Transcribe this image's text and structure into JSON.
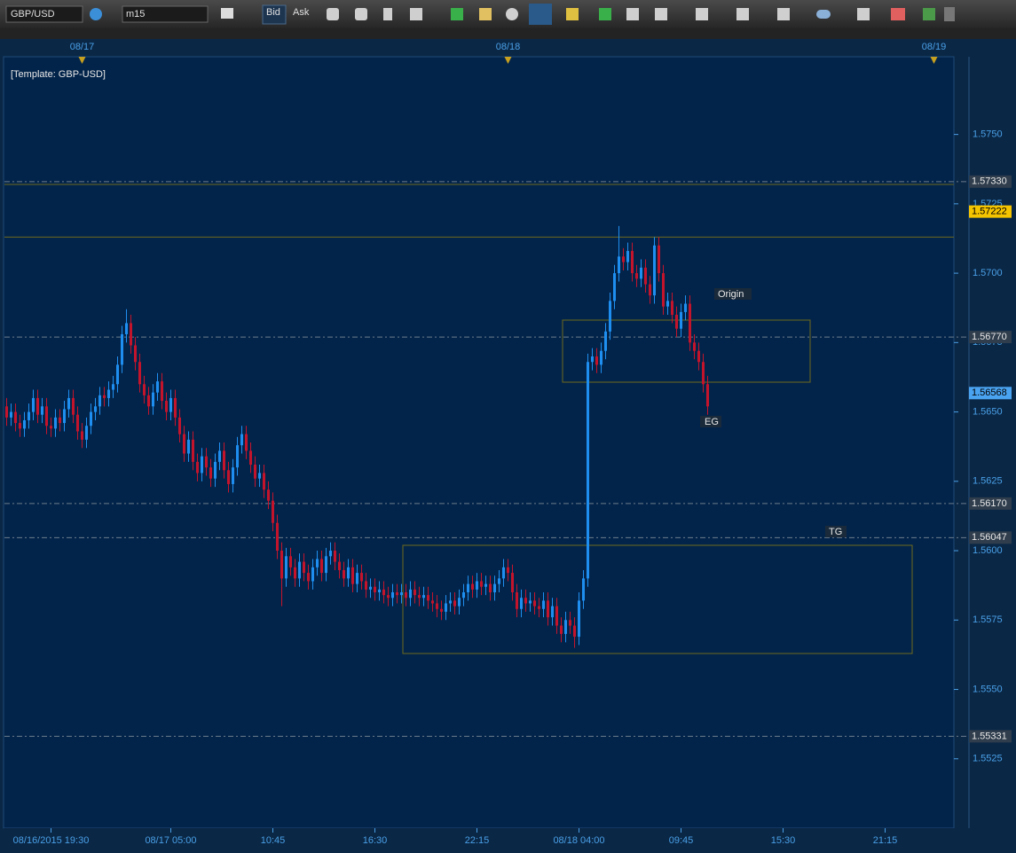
{
  "toolbar": {
    "symbol": "GBP/USD",
    "timeframe": "m15",
    "bid": "Bid",
    "ask": "Ask"
  },
  "chart_data": {
    "type": "candlestick",
    "title": "[Template: GBP-USD]",
    "categories": [
      null,
      null,
      null,
      null,
      null,
      null,
      null,
      null,
      null,
      null,
      "08/16/2015 19:30",
      null,
      null,
      null,
      null,
      null,
      null,
      null,
      null,
      null,
      null,
      null,
      null,
      null,
      null,
      null,
      null,
      null,
      null,
      null,
      null,
      null,
      null,
      null,
      null,
      null,
      null,
      "08/17 05:00",
      null,
      null,
      null,
      null,
      null,
      null,
      null,
      null,
      null,
      null,
      null,
      null,
      null,
      null,
      null,
      null,
      null,
      null,
      null,
      null,
      null,
      null,
      "10:45",
      null,
      null,
      null,
      null,
      null,
      null,
      null,
      null,
      null,
      null,
      null,
      null,
      null,
      null,
      null,
      null,
      null,
      null,
      null,
      null,
      null,
      null,
      "16:30",
      null,
      null,
      null,
      null,
      null,
      null,
      null,
      null,
      null,
      null,
      null,
      null,
      null,
      null,
      null,
      null,
      null,
      null,
      null,
      null,
      null,
      null,
      "22:15",
      null,
      null,
      null,
      null,
      null,
      null,
      null,
      null,
      null,
      null,
      null,
      null,
      null,
      null,
      null,
      null,
      null,
      null,
      null,
      null,
      null,
      null,
      "08/18 04:00",
      null,
      null,
      null,
      null,
      null,
      null,
      null,
      null,
      null,
      null,
      null,
      null,
      null,
      null,
      null,
      null,
      null,
      null,
      null,
      null,
      null,
      null,
      "09:45",
      null,
      null,
      null,
      null,
      null,
      null,
      null,
      null,
      null,
      null,
      null,
      null,
      null,
      null,
      null,
      null,
      null,
      null,
      null,
      null,
      null,
      null,
      "15:30",
      null,
      null,
      null,
      null,
      null,
      null,
      null,
      null,
      null,
      null,
      null,
      null,
      null,
      null,
      null,
      null,
      null,
      null,
      null,
      null,
      null,
      null,
      "21:15",
      null,
      null,
      null,
      null,
      null,
      null,
      null,
      null,
      null,
      null,
      null,
      null,
      null,
      null,
      null
    ],
    "dates": [
      null,
      null,
      null,
      null,
      null,
      null,
      null,
      null,
      null,
      null,
      null,
      null,
      null,
      null,
      null,
      null,
      null,
      "08/17",
      null,
      null,
      null,
      null,
      null,
      null,
      null,
      null,
      null,
      null,
      null,
      null,
      null,
      null,
      null,
      null,
      null,
      null,
      null,
      null,
      null,
      null,
      null,
      null,
      null,
      null,
      null,
      null,
      null,
      null,
      null,
      null,
      null,
      null,
      null,
      null,
      null,
      null,
      null,
      null,
      null,
      null,
      null,
      null,
      null,
      null,
      null,
      null,
      null,
      null,
      null,
      null,
      null,
      null,
      null,
      null,
      null,
      null,
      null,
      null,
      null,
      null,
      null,
      null,
      null,
      null,
      null,
      null,
      null,
      null,
      null,
      null,
      null,
      null,
      null,
      null,
      null,
      null,
      null,
      null,
      null,
      null,
      null,
      null,
      null,
      null,
      null,
      null,
      null,
      null,
      null,
      null,
      null,
      null,
      null,
      "08/18",
      null,
      null,
      null,
      null,
      null,
      null,
      null,
      null,
      null,
      null,
      null,
      null,
      null,
      null,
      null,
      null,
      null,
      null,
      null,
      null,
      null,
      null,
      null,
      null,
      null,
      null,
      null,
      null,
      null,
      null,
      null,
      null,
      null,
      null,
      null,
      null,
      null,
      null,
      null,
      null,
      null,
      null,
      null,
      null,
      null,
      null,
      null,
      null,
      null,
      null,
      null,
      null,
      null,
      null,
      null,
      null,
      null,
      null,
      null,
      null,
      null,
      null,
      null,
      null,
      null,
      null,
      null,
      null,
      null,
      null,
      null,
      null,
      null,
      null,
      null,
      null,
      null,
      null,
      null,
      null,
      null,
      null,
      null,
      null,
      null,
      null,
      null,
      null,
      null,
      null,
      null,
      null,
      null,
      null,
      null,
      "08/19",
      null,
      null,
      null,
      null
    ],
    "open": [
      1.5652,
      1.5648,
      1.565,
      1.5646,
      1.5644,
      1.5647,
      1.565,
      1.5655,
      1.5649,
      1.5652,
      1.5645,
      1.5644,
      1.5648,
      1.5646,
      1.5651,
      1.5655,
      1.5649,
      1.5643,
      1.564,
      1.5645,
      1.565,
      1.5652,
      1.5656,
      1.5655,
      1.5658,
      1.566,
      1.5667,
      1.5678,
      1.5682,
      1.5674,
      1.5668,
      1.566,
      1.5656,
      1.5652,
      1.5657,
      1.5661,
      1.5654,
      1.565,
      1.5655,
      1.5648,
      1.5642,
      1.5635,
      1.564,
      1.5632,
      1.5628,
      1.5634,
      1.563,
      1.5626,
      1.5632,
      1.5636,
      1.5629,
      1.5624,
      1.563,
      1.5638,
      1.5642,
      1.5636,
      1.5631,
      1.5626,
      1.5628,
      1.5622,
      1.5618,
      1.561,
      1.56,
      1.559,
      1.5598,
      1.5594,
      1.559,
      1.5596,
      1.5592,
      1.5589,
      1.5594,
      1.5597,
      1.5592,
      1.5598,
      1.56,
      1.5596,
      1.5593,
      1.559,
      1.5594,
      1.5588,
      1.5592,
      1.5589,
      1.5586,
      1.5587,
      1.5585,
      1.5586,
      1.5584,
      1.5583,
      1.5585,
      1.5584,
      1.5585,
      1.5583,
      1.5586,
      1.5584,
      1.5583,
      1.5584,
      1.5582,
      1.5581,
      1.5579,
      1.5578,
      1.5581,
      1.5582,
      1.558,
      1.5583,
      1.5585,
      1.5588,
      1.5586,
      1.5589,
      1.5587,
      1.5588,
      1.5585,
      1.5588,
      1.559,
      1.5594,
      1.5592,
      1.5585,
      1.5579,
      1.5583,
      1.5581,
      1.5582,
      1.558,
      1.5579,
      1.5582,
      1.5576,
      1.558,
      1.5573,
      1.557,
      1.5575,
      1.5573,
      1.5569,
      1.5582,
      1.559,
      1.5668,
      1.567,
      1.5667,
      1.5672,
      1.5679,
      1.569,
      1.57,
      1.5706,
      1.5704,
      1.5708,
      1.57,
      1.5698,
      1.5702,
      1.5696,
      1.5692,
      1.571,
      1.57,
      1.5688,
      1.569,
      1.5685,
      1.568,
      1.5686,
      1.5689,
      1.5675,
      1.5672,
      1.5668,
      1.566,
      null,
      null,
      null,
      null,
      null,
      null,
      null,
      null,
      null,
      null,
      null,
      null,
      null,
      null,
      null,
      null,
      null,
      null,
      null,
      null,
      null,
      null,
      null,
      null,
      null,
      null,
      null,
      null,
      null,
      null,
      null,
      null,
      null,
      null,
      null,
      null,
      null,
      null,
      null,
      null,
      null,
      null,
      null,
      null,
      null,
      null,
      null,
      null,
      null,
      null,
      null,
      null,
      null,
      null,
      null
    ],
    "high": [
      1.5655,
      1.5653,
      1.5653,
      1.5649,
      1.565,
      1.5653,
      1.5658,
      1.5658,
      1.5655,
      1.5655,
      1.5648,
      1.5651,
      1.5651,
      1.5654,
      1.5658,
      1.5658,
      1.5652,
      1.5646,
      1.5648,
      1.5653,
      1.5655,
      1.5659,
      1.5659,
      1.5661,
      1.5663,
      1.567,
      1.5681,
      1.5687,
      1.5685,
      1.5677,
      1.5671,
      1.5663,
      1.5659,
      1.566,
      1.5664,
      1.5664,
      1.5657,
      1.5658,
      1.5658,
      1.5651,
      1.5645,
      1.5643,
      1.5643,
      1.5635,
      1.5637,
      1.5637,
      1.5633,
      1.5635,
      1.5639,
      1.5639,
      1.5632,
      1.5633,
      1.5641,
      1.5645,
      1.5645,
      1.5639,
      1.5634,
      1.5631,
      1.5631,
      1.5625,
      1.5621,
      1.5613,
      1.5603,
      1.5601,
      1.5601,
      1.5597,
      1.5599,
      1.5599,
      1.5595,
      1.5597,
      1.56,
      1.56,
      1.5601,
      1.5603,
      1.5603,
      1.5599,
      1.5596,
      1.5597,
      1.5597,
      1.5595,
      1.5595,
      1.5592,
      1.559,
      1.559,
      1.5589,
      1.5589,
      1.5587,
      1.5588,
      1.5588,
      1.5588,
      1.5588,
      1.5589,
      1.5589,
      1.5587,
      1.5587,
      1.5587,
      1.5585,
      1.5584,
      1.5582,
      1.5584,
      1.5585,
      1.5585,
      1.5586,
      1.5588,
      1.5591,
      1.5591,
      1.5592,
      1.5592,
      1.5591,
      1.5591,
      1.5591,
      1.5593,
      1.5597,
      1.5597,
      1.5595,
      1.5588,
      1.5586,
      1.5586,
      1.5585,
      1.5585,
      1.5583,
      1.5585,
      1.5585,
      1.5583,
      1.5583,
      1.5576,
      1.5578,
      1.5578,
      1.5576,
      1.5585,
      1.5593,
      1.5671,
      1.5673,
      1.5673,
      1.5675,
      1.5682,
      1.5693,
      1.5703,
      1.5717,
      1.5709,
      1.5711,
      1.5711,
      1.5703,
      1.5705,
      1.5705,
      1.5699,
      1.5713,
      1.5713,
      1.5703,
      1.5693,
      1.5693,
      1.5688,
      1.5689,
      1.5692,
      1.5692,
      1.5678,
      1.5675,
      1.5671,
      1.5663,
      null,
      null,
      null,
      null,
      null,
      null,
      null,
      null,
      null,
      null,
      null,
      null,
      null,
      null,
      null,
      null,
      null,
      null,
      null,
      null,
      null,
      null,
      null,
      null,
      null,
      null,
      null,
      null,
      null,
      null,
      null,
      null,
      null,
      null,
      null,
      null,
      null,
      null,
      null,
      null,
      null,
      null,
      null,
      null,
      null,
      null,
      null,
      null,
      null,
      null,
      null,
      null,
      null,
      null,
      null
    ],
    "low": [
      1.5645,
      1.5645,
      1.5643,
      1.5641,
      1.5641,
      1.5644,
      1.5647,
      1.5646,
      1.5646,
      1.5642,
      1.5641,
      1.5641,
      1.5643,
      1.5643,
      1.5648,
      1.5646,
      1.564,
      1.5637,
      1.5637,
      1.5642,
      1.5647,
      1.5649,
      1.5652,
      1.5652,
      1.5655,
      1.5657,
      1.5664,
      1.5675,
      1.5671,
      1.5665,
      1.5657,
      1.5653,
      1.5649,
      1.5649,
      1.5654,
      1.5651,
      1.5647,
      1.5647,
      1.5645,
      1.5639,
      1.5632,
      1.5632,
      1.5629,
      1.5625,
      1.5625,
      1.5627,
      1.5623,
      1.5623,
      1.5629,
      1.5626,
      1.5621,
      1.5621,
      1.5627,
      1.5635,
      1.5633,
      1.5628,
      1.5623,
      1.5623,
      1.5619,
      1.5615,
      1.5607,
      1.5597,
      1.558,
      1.5587,
      1.5591,
      1.5587,
      1.5587,
      1.5589,
      1.5586,
      1.5586,
      1.5591,
      1.5589,
      1.5589,
      1.5595,
      1.5593,
      1.559,
      1.5587,
      1.5587,
      1.5585,
      1.5585,
      1.5586,
      1.5583,
      1.5583,
      1.5582,
      1.5582,
      1.5581,
      1.558,
      1.558,
      1.5581,
      1.5581,
      1.558,
      1.558,
      1.5581,
      1.558,
      1.558,
      1.5579,
      1.5578,
      1.5576,
      1.5575,
      1.5575,
      1.5578,
      1.5577,
      1.5577,
      1.558,
      1.5582,
      1.5583,
      1.5583,
      1.5584,
      1.5584,
      1.5582,
      1.5582,
      1.5585,
      1.5587,
      1.5589,
      1.5582,
      1.5576,
      1.5576,
      1.5578,
      1.5578,
      1.5577,
      1.5576,
      1.5576,
      1.5573,
      1.5573,
      1.557,
      1.5567,
      1.5567,
      1.557,
      1.5565,
      1.5566,
      1.5579,
      1.5587,
      1.5665,
      1.5664,
      1.5664,
      1.5669,
      1.5676,
      1.5687,
      1.5697,
      1.5701,
      1.5701,
      1.5697,
      1.5695,
      1.5695,
      1.5693,
      1.5689,
      1.5689,
      1.5697,
      1.5685,
      1.5685,
      1.5682,
      1.5677,
      1.5677,
      1.5683,
      1.5672,
      1.5669,
      1.5665,
      1.5657,
      1.5649,
      null,
      null,
      null,
      null,
      null,
      null,
      null,
      null,
      null,
      null,
      null,
      null,
      null,
      null,
      null,
      null,
      null,
      null,
      null,
      null,
      null,
      null,
      null,
      null,
      null,
      null,
      null,
      null,
      null,
      null,
      null,
      null,
      null,
      null,
      null,
      null,
      null,
      null,
      null,
      null,
      null,
      null,
      null,
      null,
      null,
      null,
      null,
      null,
      null,
      null,
      null,
      null,
      null,
      null,
      null
    ],
    "close": [
      1.5648,
      1.565,
      1.5646,
      1.5644,
      1.5647,
      1.565,
      1.5655,
      1.5649,
      1.5652,
      1.5645,
      1.5644,
      1.5648,
      1.5646,
      1.5651,
      1.5655,
      1.5649,
      1.5643,
      1.564,
      1.5645,
      1.565,
      1.5652,
      1.5656,
      1.5655,
      1.5658,
      1.566,
      1.5667,
      1.5678,
      1.5682,
      1.5674,
      1.5668,
      1.566,
      1.5656,
      1.5652,
      1.5657,
      1.5661,
      1.5654,
      1.565,
      1.5655,
      1.5648,
      1.5642,
      1.5635,
      1.564,
      1.5632,
      1.5628,
      1.5634,
      1.563,
      1.5626,
      1.5632,
      1.5636,
      1.5629,
      1.5624,
      1.563,
      1.5638,
      1.5642,
      1.5636,
      1.5631,
      1.5626,
      1.5628,
      1.5622,
      1.5618,
      1.561,
      1.56,
      1.559,
      1.5598,
      1.5594,
      1.559,
      1.5596,
      1.5592,
      1.5589,
      1.5594,
      1.5597,
      1.5592,
      1.5598,
      1.56,
      1.5596,
      1.5593,
      1.559,
      1.5594,
      1.5588,
      1.5592,
      1.5589,
      1.5586,
      1.5587,
      1.5585,
      1.5586,
      1.5584,
      1.5583,
      1.5585,
      1.5584,
      1.5585,
      1.5583,
      1.5586,
      1.5584,
      1.5583,
      1.5584,
      1.5582,
      1.5581,
      1.5579,
      1.5578,
      1.5581,
      1.5582,
      1.558,
      1.5583,
      1.5585,
      1.5588,
      1.5586,
      1.5589,
      1.5587,
      1.5588,
      1.5585,
      1.5588,
      1.559,
      1.5594,
      1.5592,
      1.5585,
      1.5579,
      1.5583,
      1.5581,
      1.5582,
      1.558,
      1.5579,
      1.5582,
      1.5576,
      1.558,
      1.5573,
      1.557,
      1.5575,
      1.5573,
      1.5569,
      1.5582,
      1.559,
      1.5668,
      1.567,
      1.5667,
      1.5672,
      1.5679,
      1.569,
      1.57,
      1.5706,
      1.5704,
      1.5708,
      1.57,
      1.5698,
      1.5702,
      1.5696,
      1.5692,
      1.571,
      1.57,
      1.5688,
      1.569,
      1.5685,
      1.568,
      1.5686,
      1.5689,
      1.5675,
      1.5672,
      1.5668,
      1.566,
      1.5652,
      null,
      null,
      null,
      null,
      null,
      null,
      null,
      null,
      null,
      null,
      null,
      null,
      null,
      null,
      null,
      null,
      null,
      null,
      null,
      null,
      null,
      null,
      null,
      null,
      null,
      null,
      null,
      null,
      null,
      null,
      null,
      null,
      null,
      null,
      null,
      null,
      null,
      null,
      null,
      null,
      null,
      null,
      null,
      null,
      null,
      null,
      null,
      null,
      null,
      null,
      null,
      null,
      null,
      null,
      null
    ],
    "up_color": "#1e8ff0",
    "down_color": "#c4142c",
    "ylim": [
      1.55,
      1.5778
    ],
    "yticks": [
      {
        "value": 1.575,
        "label": "1.5750"
      },
      1.5725,
      {
        "value": 1.57,
        "label": "1.5700"
      },
      1.5675,
      {
        "value": 1.565,
        "label": "1.5650"
      },
      1.5625,
      {
        "value": 1.56,
        "label": "1.5600"
      },
      1.5575,
      {
        "value": 1.555,
        "label": "1.5550"
      },
      1.5525
    ],
    "levels": [
      {
        "value": 1.5733,
        "label": "1.57330",
        "line": true,
        "bg": "#2f3d4c",
        "fg": "#e8e8e8"
      },
      {
        "value": 1.57222,
        "label": "1.57222",
        "line": false,
        "bg": "#f5c400",
        "fg": "#000000"
      },
      {
        "value": 1.5677,
        "label": "1.56770",
        "line": true,
        "bg": "#2f3d4c",
        "fg": "#e8e8e8"
      },
      {
        "value": 1.56568,
        "label": "1.56568",
        "line": false,
        "bg": "#4aa3f0",
        "fg": "#000000"
      },
      {
        "value": 1.5617,
        "label": "1.56170",
        "line": true,
        "bg": "#2f3d4c",
        "fg": "#e8e8e8"
      },
      {
        "value": 1.56047,
        "label": "1.56047",
        "line": true,
        "bg": "#2f3d4c",
        "fg": "#e8e8e8"
      },
      {
        "value": 1.55331,
        "label": "1.55331",
        "line": true,
        "bg": "#2f3d4c",
        "fg": "#e8e8e8"
      }
    ],
    "trend_lines": [
      1.5732,
      1.5713
    ],
    "trend_color": "#6e6a1c",
    "annotations": [
      "Origin",
      "EG",
      "TG"
    ]
  }
}
